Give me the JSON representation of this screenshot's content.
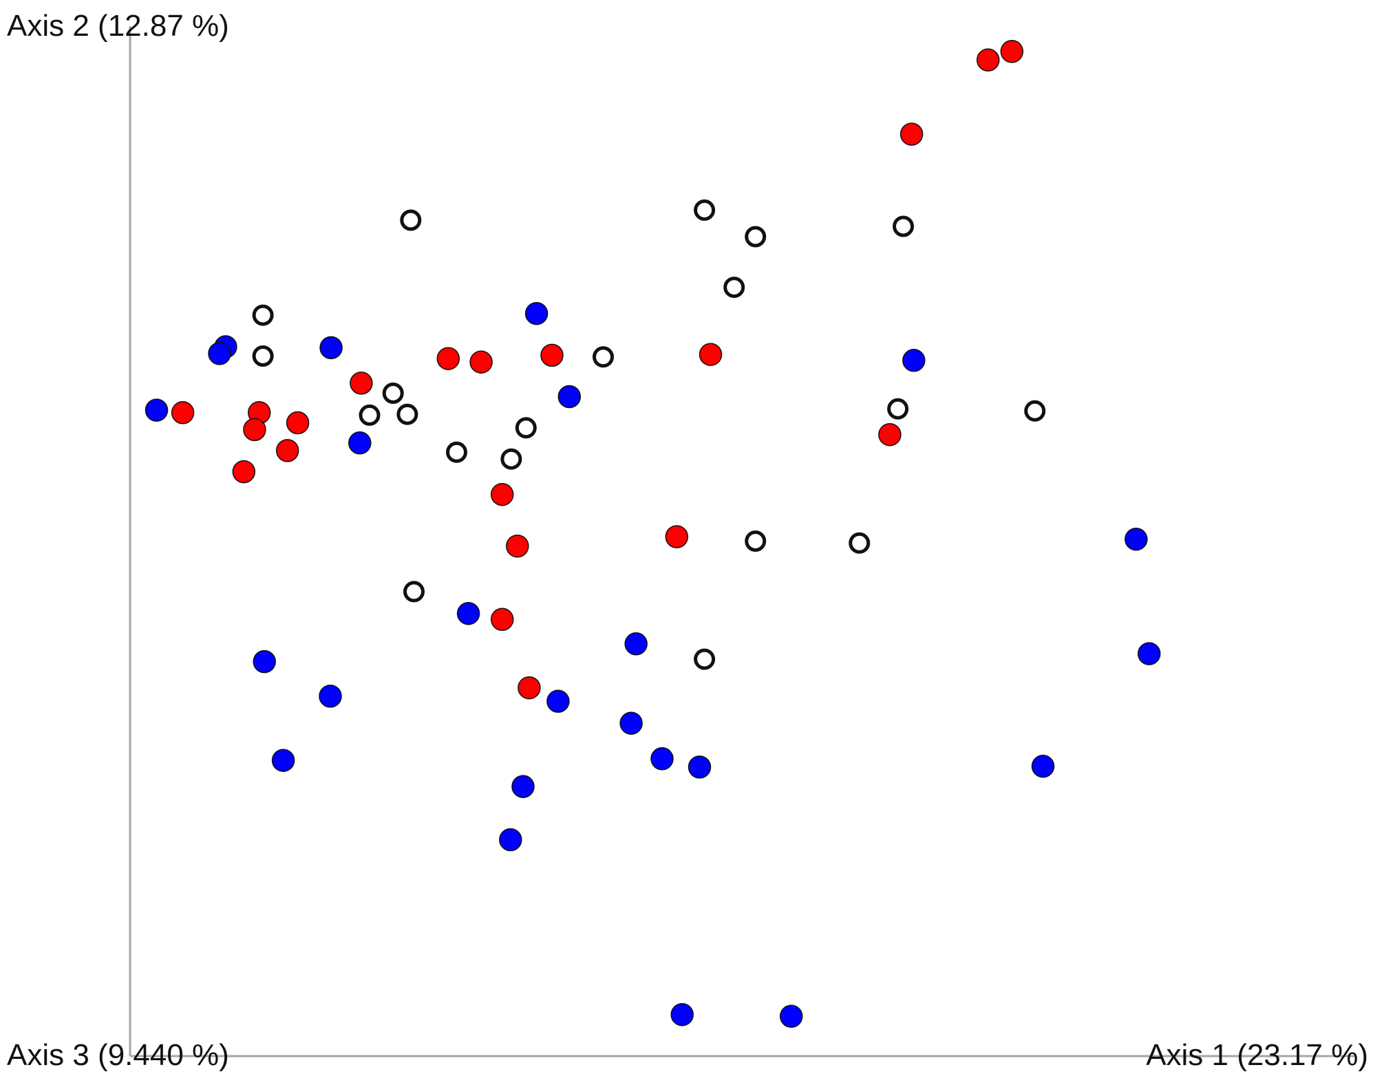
{
  "chart_data": {
    "type": "scatter",
    "title": "",
    "axes": {
      "y_label": "Axis 2 (12.87 %)",
      "x_label": "Axis 1 (23.17 %)",
      "z_label": "Axis 3 (9.440 %)"
    },
    "xlim": [
      0,
      1
    ],
    "ylim": [
      0,
      1
    ],
    "grid": false,
    "colors": {
      "red": "#ff0000",
      "blue": "#0000ff",
      "open": "#ffffff",
      "outline": "#111111",
      "axis": "#a6a6a6"
    },
    "series": [
      {
        "marker": "red",
        "color": "#ff0000",
        "points": [
          {
            "x": 0.7,
            "y": 0.9672
          },
          {
            "x": 0.7194,
            "y": 0.9754
          },
          {
            "x": 0.6376,
            "y": 0.8951
          },
          {
            "x": 0.4736,
            "y": 0.6812
          },
          {
            "x": 0.2596,
            "y": 0.6772
          },
          {
            "x": 0.2864,
            "y": 0.6739
          },
          {
            "x": 0.3442,
            "y": 0.6804
          },
          {
            "x": 0.1886,
            "y": 0.6534
          },
          {
            "x": 0.043,
            "y": 0.6247
          },
          {
            "x": 0.1054,
            "y": 0.6247
          },
          {
            "x": 0.1016,
            "y": 0.6083
          },
          {
            "x": 0.1368,
            "y": 0.6149
          },
          {
            "x": 0.1284,
            "y": 0.5879
          },
          {
            "x": 0.0928,
            "y": 0.5674
          },
          {
            "x": 0.3036,
            "y": 0.5453
          },
          {
            "x": 0.316,
            "y": 0.4952
          },
          {
            "x": 0.446,
            "y": 0.5043
          },
          {
            "x": 0.6198,
            "y": 0.6034
          },
          {
            "x": 0.3036,
            "y": 0.424
          },
          {
            "x": 0.3256,
            "y": 0.3576
          }
        ]
      },
      {
        "marker": "blue",
        "color": "#0000ff",
        "points": [
          {
            "x": 0.3316,
            "y": 0.721
          },
          {
            "x": 0.078,
            "y": 0.6887
          },
          {
            "x": 0.073,
            "y": 0.6821
          },
          {
            "x": 0.164,
            "y": 0.6878
          },
          {
            "x": 0.0216,
            "y": 0.6272
          },
          {
            "x": 0.1874,
            "y": 0.5953
          },
          {
            "x": 0.3584,
            "y": 0.6403
          },
          {
            "x": 0.6394,
            "y": 0.6755
          },
          {
            "x": 0.8208,
            "y": 0.5019
          },
          {
            "x": 0.276,
            "y": 0.4297
          },
          {
            "x": 0.4128,
            "y": 0.4003
          },
          {
            "x": 0.8314,
            "y": 0.3907
          },
          {
            "x": 0.1096,
            "y": 0.383
          },
          {
            "x": 0.1634,
            "y": 0.3494
          },
          {
            "x": 0.3492,
            "y": 0.3445
          },
          {
            "x": 0.4088,
            "y": 0.3232
          },
          {
            "x": 0.125,
            "y": 0.2871
          },
          {
            "x": 0.434,
            "y": 0.2887
          },
          {
            "x": 0.4646,
            "y": 0.2806
          },
          {
            "x": 0.7448,
            "y": 0.2814
          },
          {
            "x": 0.3206,
            "y": 0.2617
          },
          {
            "x": 0.3104,
            "y": 0.2101
          },
          {
            "x": 0.4504,
            "y": 0.0403
          },
          {
            "x": 0.5394,
            "y": 0.0387
          }
        ]
      },
      {
        "marker": "open",
        "color": "#ffffff",
        "points": [
          {
            "x": 0.229,
            "y": 0.8116
          },
          {
            "x": 0.4686,
            "y": 0.8214
          },
          {
            "x": 0.5102,
            "y": 0.7956
          },
          {
            "x": 0.6308,
            "y": 0.8056
          },
          {
            "x": 0.4928,
            "y": 0.7464
          },
          {
            "x": 0.1084,
            "y": 0.7194
          },
          {
            "x": 0.386,
            "y": 0.6788
          },
          {
            "x": 0.1084,
            "y": 0.6797
          },
          {
            "x": 0.2146,
            "y": 0.6436
          },
          {
            "x": 0.1954,
            "y": 0.6223
          },
          {
            "x": 0.2262,
            "y": 0.6231
          },
          {
            "x": 0.323,
            "y": 0.61
          },
          {
            "x": 0.6264,
            "y": 0.6284
          },
          {
            "x": 0.7382,
            "y": 0.6264
          },
          {
            "x": 0.2664,
            "y": 0.5863
          },
          {
            "x": 0.311,
            "y": 0.5797
          },
          {
            "x": 0.5102,
            "y": 0.5
          },
          {
            "x": 0.595,
            "y": 0.4981
          },
          {
            "x": 0.2316,
            "y": 0.451
          },
          {
            "x": 0.4686,
            "y": 0.3854
          }
        ]
      }
    ]
  }
}
